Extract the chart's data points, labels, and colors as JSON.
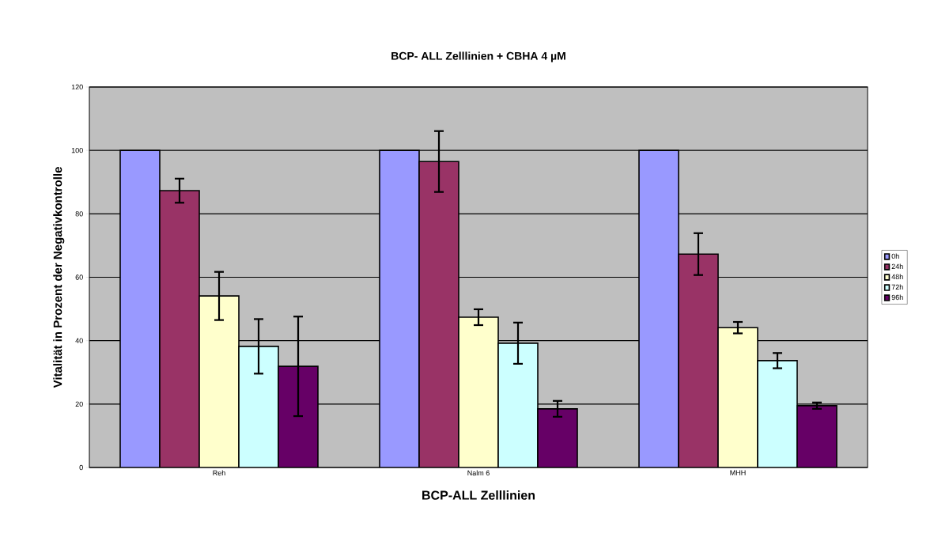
{
  "chart_data": {
    "type": "bar",
    "title": "BCP- ALL Zelllinien + CBHA 4 µM",
    "xlabel": "BCP-ALL Zelllinien",
    "ylabel": "Vitalität in Prozent der Negativkontrolle",
    "categories": [
      "Reh",
      "Nalm 6",
      "MHH"
    ],
    "series": [
      {
        "name": "0h",
        "color": "#9999ff",
        "values": [
          100,
          100,
          100
        ]
      },
      {
        "name": "24h",
        "color": "#993366",
        "values": [
          87.3,
          96.5,
          67.3
        ],
        "errors": [
          3.8,
          9.6,
          6.6
        ]
      },
      {
        "name": "48h",
        "color": "#ffffcc",
        "values": [
          54.1,
          47.4,
          44.1
        ],
        "errors": [
          7.6,
          2.5,
          1.8
        ]
      },
      {
        "name": "72h",
        "color": "#ccffff",
        "values": [
          38.2,
          39.2,
          33.7
        ],
        "errors": [
          8.6,
          6.5,
          2.4
        ]
      },
      {
        "name": "96h",
        "color": "#660066",
        "values": [
          31.9,
          18.5,
          19.5
        ],
        "errors": [
          15.7,
          2.5,
          1.0
        ]
      }
    ],
    "ylim": [
      0,
      120
    ],
    "yticks": [
      0,
      20,
      40,
      60,
      80,
      100,
      120
    ],
    "grid": "y",
    "legend": "right"
  }
}
